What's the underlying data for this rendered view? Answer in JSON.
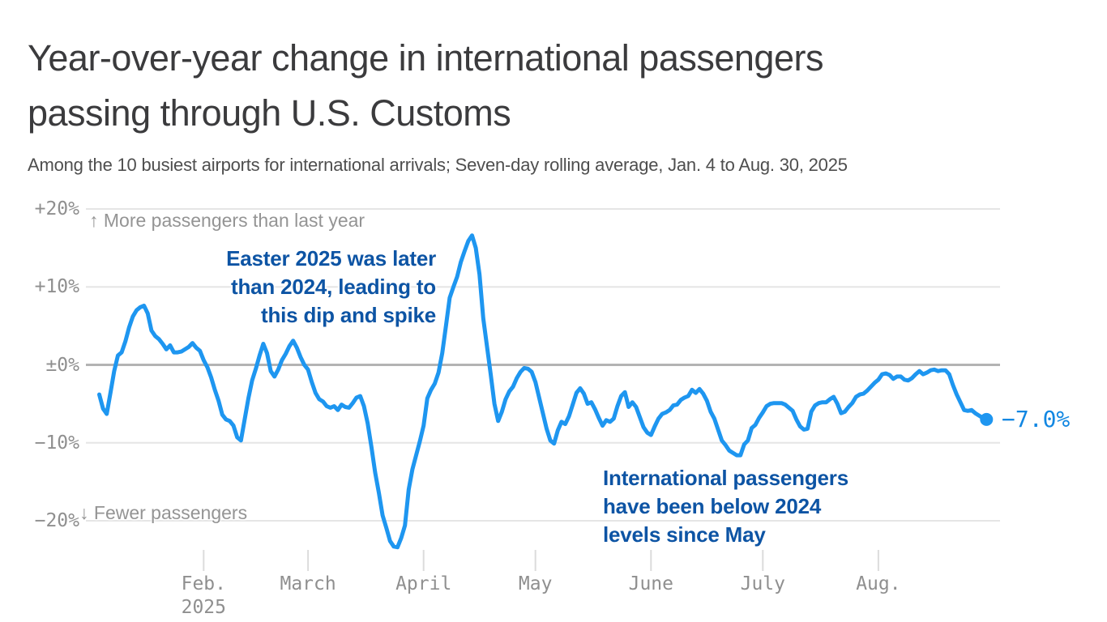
{
  "header": {
    "title_line1": "Year-over-year change in international passengers",
    "title_line2": "passing through U.S. Customs",
    "subtitle": "Among the 10 busiest airports for international arrivals; Seven-day rolling average, Jan. 4 to Aug. 30, 2025"
  },
  "colors": {
    "line_blue": "#1e96f0",
    "end_label_blue": "#1287e2",
    "annotation_blue": "#0d54a4",
    "grid_gray": "#e5e5e5",
    "zero_line_gray": "#b3b3b3",
    "tick_gray": "#dcdcdc",
    "axis_text_gray": "#8f8f8f",
    "title_gray": "#3b3b3d",
    "subtitle_gray": "#4e4e4e"
  },
  "annotations": {
    "more_passengers": "↑ More passengers than last year",
    "fewer_passengers": "↓ Fewer passengers",
    "easter_lines": [
      "Easter 2025 was later",
      "than 2024, leading to",
      "this dip and spike"
    ],
    "may_lines": [
      "International passengers",
      "have been below 2024",
      "levels since May"
    ],
    "end_label": "−7.0%"
  },
  "chart_data": {
    "type": "line",
    "title": "Year-over-year change in international passengers passing through U.S. Customs",
    "subtitle": "Among the 10 busiest airports for international arrivals; Seven-day rolling average, Jan. 4 to Aug. 30, 2025",
    "series_name": "YoY change in international passengers, 7-day rolling average",
    "unit": "percent",
    "x_start_date": "Jan. 4, 2025",
    "x_end_date": "Aug. 30, 2025",
    "x_step_days": 1,
    "ylim": [
      -25,
      22
    ],
    "grid": true,
    "legend": "none",
    "y_ticks": [
      {
        "label": "+20%",
        "value": 20
      },
      {
        "label": "+10%",
        "value": 10
      },
      {
        "label": "±0%",
        "value": 0
      },
      {
        "label": "−10%",
        "value": -10
      },
      {
        "label": "−20%",
        "value": -20
      }
    ],
    "x_ticks": [
      {
        "label": "Feb.",
        "sublabel": "2025",
        "day_offset": 28
      },
      {
        "label": "March",
        "sublabel": "",
        "day_offset": 56
      },
      {
        "label": "April",
        "sublabel": "",
        "day_offset": 87
      },
      {
        "label": "May",
        "sublabel": "",
        "day_offset": 117
      },
      {
        "label": "June",
        "sublabel": "",
        "day_offset": 148
      },
      {
        "label": "July",
        "sublabel": "",
        "day_offset": 178
      },
      {
        "label": "Aug.",
        "sublabel": "",
        "day_offset": 209
      }
    ],
    "values": [
      -3.8,
      -5.6,
      -6.3,
      -3.6,
      -0.8,
      1.2,
      1.6,
      3.0,
      4.8,
      6.2,
      7.0,
      7.4,
      7.6,
      6.6,
      4.4,
      3.7,
      3.3,
      2.7,
      2.0,
      2.5,
      1.6,
      1.6,
      1.7,
      2.0,
      2.3,
      2.8,
      2.2,
      1.8,
      0.6,
      -0.3,
      -1.6,
      -3.2,
      -4.6,
      -6.4,
      -7.0,
      -7.2,
      -7.8,
      -9.3,
      -9.7,
      -7.0,
      -4.3,
      -2.0,
      -0.5,
      1.2,
      2.7,
      1.5,
      -0.8,
      -1.5,
      -0.6,
      0.6,
      1.4,
      2.4,
      3.1,
      2.2,
      1.0,
      0.0,
      -0.6,
      -2.2,
      -3.6,
      -4.4,
      -4.7,
      -5.3,
      -5.5,
      -5.3,
      -5.8,
      -5.1,
      -5.4,
      -5.5,
      -4.9,
      -4.2,
      -4.0,
      -5.3,
      -7.5,
      -10.5,
      -13.8,
      -16.4,
      -19.3,
      -20.9,
      -22.6,
      -23.3,
      -23.4,
      -22.2,
      -20.6,
      -16.0,
      -13.4,
      -11.6,
      -9.8,
      -7.8,
      -4.3,
      -3.2,
      -2.4,
      -1.0,
      1.5,
      5.0,
      8.6,
      10.0,
      11.3,
      13.2,
      14.6,
      15.9,
      16.6,
      15.0,
      11.6,
      6.0,
      2.4,
      -1.2,
      -5.0,
      -7.2,
      -6.0,
      -4.4,
      -3.4,
      -2.8,
      -1.7,
      -0.9,
      -0.4,
      -0.5,
      -0.9,
      -2.2,
      -4.2,
      -6.2,
      -8.2,
      -9.7,
      -10.1,
      -8.4,
      -7.3,
      -7.6,
      -6.6,
      -5.1,
      -3.6,
      -3.0,
      -3.7,
      -5.0,
      -4.8,
      -5.7,
      -6.8,
      -7.8,
      -7.1,
      -7.3,
      -6.9,
      -5.3,
      -4.0,
      -3.5,
      -5.4,
      -4.8,
      -5.4,
      -6.7,
      -8.0,
      -8.7,
      -9.0,
      -7.9,
      -6.9,
      -6.3,
      -6.1,
      -5.8,
      -5.2,
      -5.1,
      -4.5,
      -4.2,
      -4.0,
      -3.2,
      -3.6,
      -3.1,
      -3.7,
      -4.6,
      -6.0,
      -6.9,
      -8.3,
      -9.7,
      -10.3,
      -11.0,
      -11.3,
      -11.6,
      -11.6,
      -10.2,
      -9.7,
      -8.1,
      -7.7,
      -6.8,
      -6.1,
      -5.3,
      -5.0,
      -4.9,
      -4.9,
      -4.9,
      -5.1,
      -5.5,
      -5.9,
      -7.0,
      -7.9,
      -8.3,
      -8.2,
      -6.0,
      -5.2,
      -4.9,
      -4.8,
      -4.8,
      -4.4,
      -4.1,
      -5.0,
      -6.2,
      -6.0,
      -5.4,
      -4.9,
      -4.1,
      -3.8,
      -3.7,
      -3.3,
      -2.8,
      -2.3,
      -1.9,
      -1.2,
      -1.1,
      -1.3,
      -1.8,
      -1.5,
      -1.5,
      -1.9,
      -2.0,
      -1.7,
      -1.2,
      -0.8,
      -1.2,
      -1.0,
      -0.7,
      -0.6,
      -0.8,
      -0.7,
      -0.7,
      -1.2,
      -2.6,
      -3.8,
      -4.8,
      -5.8,
      -5.9,
      -5.8,
      -6.2,
      -6.5,
      -6.8,
      -7.0
    ],
    "end_value": -7.0,
    "end_value_label": "−7.0%"
  }
}
